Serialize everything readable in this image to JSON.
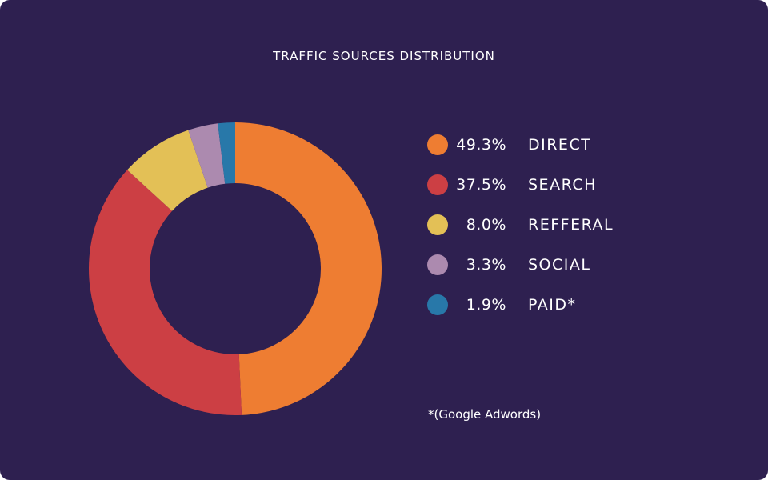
{
  "chart_data": {
    "type": "pie",
    "title": "TRAFFIC SOURCES DISTRIBUTION",
    "categories": [
      "DIRECT",
      "SEARCH",
      "REFFERAL",
      "SOCIAL",
      "PAID*"
    ],
    "values": [
      49.3,
      37.5,
      8.0,
      3.3,
      1.9
    ],
    "value_labels": [
      "49.3%",
      "37.5%",
      "8.0%",
      "3.3%",
      "1.9%"
    ],
    "colors": [
      "#ee7d32",
      "#cc3f44",
      "#e3c056",
      "#ac8aaf",
      "#2878a9"
    ],
    "donut": true,
    "legend_position": "right",
    "footnote": "*(Google Adwords)"
  },
  "colors": {
    "background": "#2e2050",
    "text": "#ffffff"
  }
}
